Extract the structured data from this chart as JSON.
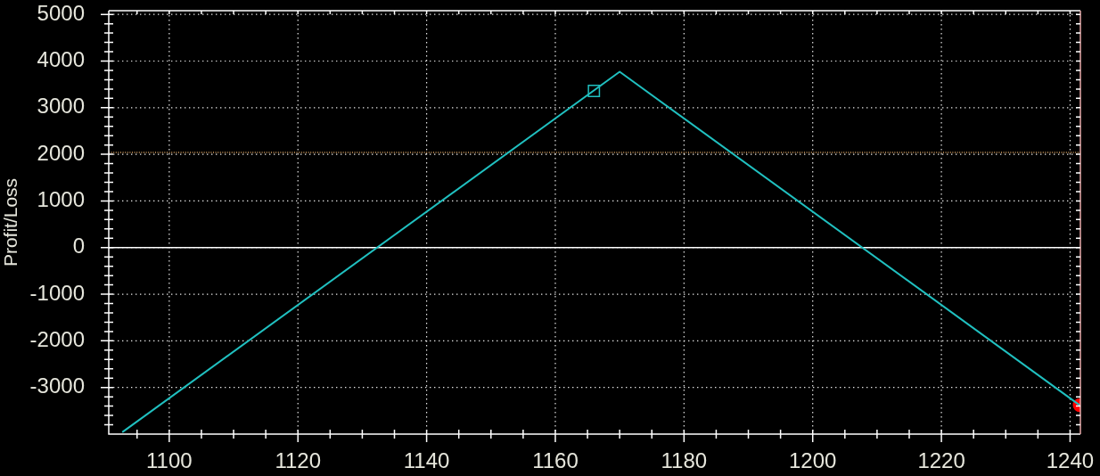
{
  "chart_data": {
    "type": "line",
    "ylabel": "Profit/Loss",
    "xlim": [
      1090.6,
      1241.6
    ],
    "xticks": [
      {
        "value": 1095,
        "label": null
      },
      1100,
      {
        "value": 1105,
        "label": null
      },
      {
        "value": 1110,
        "label": null
      },
      {
        "value": 1115,
        "label": null
      },
      1120,
      {
        "value": 1125,
        "label": null
      },
      {
        "value": 1130,
        "label": null
      },
      {
        "value": 1135,
        "label": null
      },
      1140,
      {
        "value": 1145,
        "label": null
      },
      {
        "value": 1150,
        "label": null
      },
      {
        "value": 1155,
        "label": null
      },
      1160,
      {
        "value": 1165,
        "label": null
      },
      {
        "value": 1170,
        "label": null
      },
      {
        "value": 1175,
        "label": null
      },
      1180,
      {
        "value": 1185,
        "label": null
      },
      {
        "value": 1190,
        "label": null
      },
      {
        "value": 1195,
        "label": null
      },
      1200,
      {
        "value": 1205,
        "label": null
      },
      {
        "value": 1210,
        "label": null
      },
      {
        "value": 1215,
        "label": null
      },
      1220,
      {
        "value": 1225,
        "label": null
      },
      {
        "value": 1230,
        "label": null
      },
      {
        "value": 1235,
        "label": null
      },
      1240
    ],
    "ylim": [
      -4000,
      5080
    ],
    "yticks": [
      {
        "value": -3800,
        "label": null
      },
      {
        "value": -3600,
        "label": null
      },
      {
        "value": -3400,
        "label": null
      },
      {
        "value": -3200,
        "label": null
      },
      -3000,
      {
        "value": -2800,
        "label": null
      },
      {
        "value": -2600,
        "label": null
      },
      {
        "value": -2400,
        "label": null
      },
      {
        "value": -2200,
        "label": null
      },
      -2000,
      {
        "value": -1800,
        "label": null
      },
      {
        "value": -1600,
        "label": null
      },
      {
        "value": -1400,
        "label": null
      },
      {
        "value": -1200,
        "label": null
      },
      -1000,
      {
        "value": -800,
        "label": null
      },
      {
        "value": -600,
        "label": null
      },
      {
        "value": -400,
        "label": null
      },
      {
        "value": -200,
        "label": null
      },
      0,
      {
        "value": 200,
        "label": null
      },
      {
        "value": 400,
        "label": null
      },
      {
        "value": 600,
        "label": null
      },
      {
        "value": 800,
        "label": null
      },
      1000,
      {
        "value": 1200,
        "label": null
      },
      {
        "value": 1400,
        "label": null
      },
      {
        "value": 1600,
        "label": null
      },
      {
        "value": 1800,
        "label": null
      },
      2000,
      {
        "value": 2200,
        "label": null
      },
      {
        "value": 2400,
        "label": null
      },
      {
        "value": 2600,
        "label": null
      },
      {
        "value": 2800,
        "label": null
      },
      3000,
      {
        "value": 3200,
        "label": null
      },
      {
        "value": 3400,
        "label": null
      },
      {
        "value": 3600,
        "label": null
      },
      {
        "value": 3800,
        "label": null
      },
      4000,
      {
        "value": 4200,
        "label": null
      },
      {
        "value": 4400,
        "label": null
      },
      {
        "value": 4600,
        "label": null
      },
      {
        "value": 4800,
        "label": null
      },
      5000
    ],
    "series": [
      {
        "color": "#20c0c0",
        "x": [
          1092.7,
          1170,
          1241.5
        ],
        "values": [
          -3960,
          3770,
          -3380
        ]
      },
      {
        "type": "scatter",
        "marker": "square",
        "color": "#20c0c0",
        "x": [
          1166
        ],
        "values": [
          3360
        ]
      },
      {
        "type": "scatter",
        "marker": "circle",
        "color": "#ff0000",
        "x": [
          1241.5
        ],
        "values": [
          -3380
        ]
      }
    ],
    "ref_lines": [
      {
        "axis": "y",
        "value": 0,
        "color": "#ffffff",
        "line_style": "solid"
      },
      {
        "axis": "y",
        "value": 2040,
        "color": "#d8a060",
        "line_style": "dotted"
      }
    ],
    "grid": true
  }
}
